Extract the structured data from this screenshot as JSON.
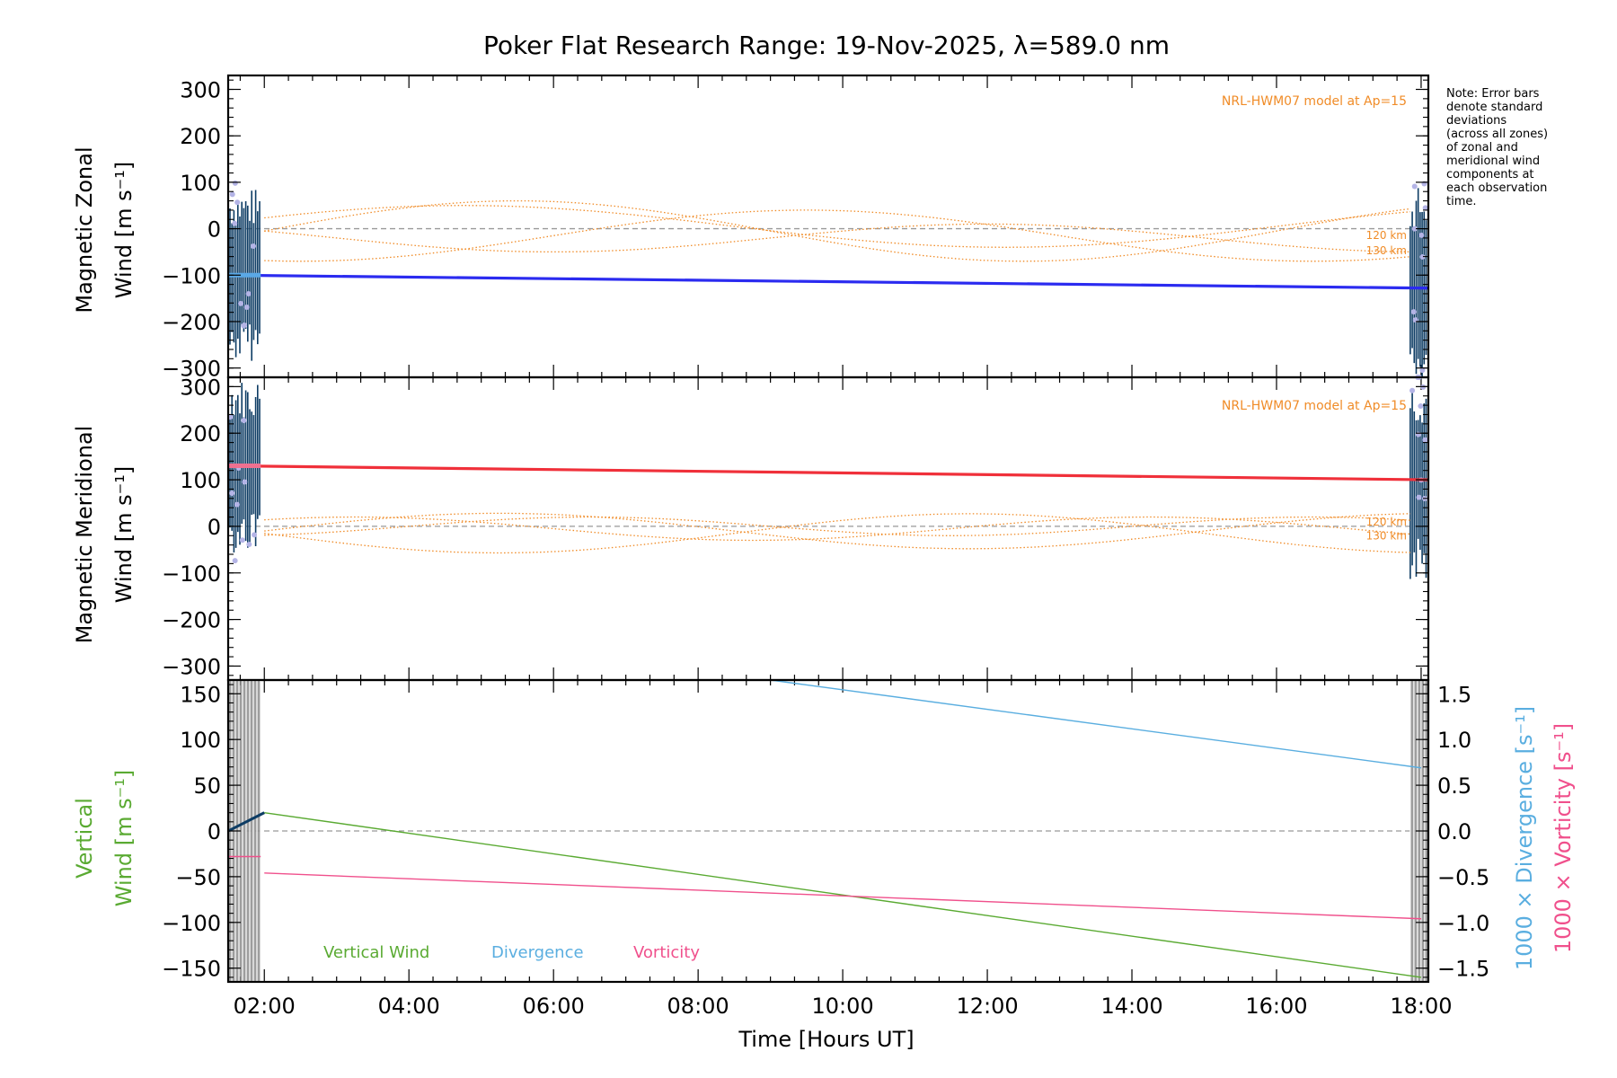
{
  "chart_data": {
    "type": "line",
    "title": "Poker Flat Research Range: 19-Nov-2025, λ=589.0 nm",
    "xlabel": "Time [Hours UT]",
    "x_range_hours": [
      1.5,
      18.1
    ],
    "x_ticks": [
      {
        "hour": 2,
        "label": "02:00"
      },
      {
        "hour": 4,
        "label": "04:00"
      },
      {
        "hour": 6,
        "label": "06:00"
      },
      {
        "hour": 8,
        "label": "08:00"
      },
      {
        "hour": 10,
        "label": "10:00"
      },
      {
        "hour": 12,
        "label": "12:00"
      },
      {
        "hour": 14,
        "label": "14:00"
      },
      {
        "hour": 16,
        "label": "16:00"
      },
      {
        "hour": 18,
        "label": "18:00"
      }
    ],
    "note": [
      "Note: Error bars",
      "denote standard",
      "deviations",
      "(across all zones)",
      "of zonal and",
      "meridional wind",
      "components at",
      "each observation",
      "time."
    ],
    "colors": {
      "zonal": "#2b2bf0",
      "meridional": "#f0303a",
      "vertical": "#5aaa32",
      "divergence": "#5aaee0",
      "vorticity": "#f0508c",
      "model": "#f08c28",
      "errorbar": "#0d3c64",
      "errorlight": "#b4b4e6",
      "gray": "#8c8c8c"
    },
    "panels": [
      {
        "id": "zonal",
        "ylabel_line1": "Magnetic Zonal",
        "ylabel_line2": "Wind [m s⁻¹]",
        "ylim": [
          -320,
          330
        ],
        "yticks": [
          {
            "v": 300,
            "label": "300"
          },
          {
            "v": 200,
            "label": "200"
          },
          {
            "v": 100,
            "label": "100"
          },
          {
            "v": 0,
            "label": "0"
          },
          {
            "v": -100,
            "label": "−100"
          },
          {
            "v": -200,
            "label": "−200"
          },
          {
            "v": -300,
            "label": "−300"
          }
        ],
        "model_label": "NRL-HWM07 model at Ap=15",
        "altitude_labels": [
          {
            "text": "120 km",
            "v": -22
          },
          {
            "text": "130 km",
            "v": -55
          }
        ],
        "series": [
          {
            "name": "Zonal wind",
            "x": [
              1.5,
              18.1
            ],
            "y": [
              -100,
              -128
            ]
          }
        ],
        "model_curves": [
          {
            "name": "HWM curve 1",
            "amp": 65,
            "period": 14,
            "phase": 2.0,
            "offset": -5
          },
          {
            "name": "HWM curve 2",
            "amp": 55,
            "period": 14,
            "phase": 6.0,
            "offset": -15
          },
          {
            "name": "HWM curve 3",
            "amp": 45,
            "period": 15,
            "phase": 1.0,
            "offset": 5
          },
          {
            "name": "HWM curve 4",
            "amp": 30,
            "period": 12,
            "phase": 9.0,
            "offset": -20
          }
        ]
      },
      {
        "id": "meridional",
        "ylabel_line1": "Magnetic Meridional",
        "ylabel_line2": "Wind [m s⁻¹]",
        "ylim": [
          -330,
          320
        ],
        "yticks": [
          {
            "v": 300,
            "label": "300"
          },
          {
            "v": 200,
            "label": "200"
          },
          {
            "v": 100,
            "label": "100"
          },
          {
            "v": 0,
            "label": "0"
          },
          {
            "v": -100,
            "label": "−100"
          },
          {
            "v": -200,
            "label": "−200"
          },
          {
            "v": -300,
            "label": "−300"
          }
        ],
        "model_label": "NRL-HWM07 model at Ap=15",
        "altitude_labels": [
          {
            "text": "120 km",
            "v": 2
          },
          {
            "text": "130 km",
            "v": -28
          }
        ],
        "series": [
          {
            "name": "Meridional wind",
            "x": [
              1.5,
              18.1
            ],
            "y": [
              130,
              100
            ]
          }
        ],
        "model_curves": [
          {
            "name": "HWM curve 1",
            "amp": 38,
            "period": 13,
            "phase": 2.0,
            "offset": -10
          },
          {
            "name": "HWM curve 2",
            "amp": 42,
            "period": 13,
            "phase": 8.5,
            "offset": -15
          },
          {
            "name": "HWM curve 3",
            "amp": 20,
            "period": 10,
            "phase": 4.0,
            "offset": 0
          },
          {
            "name": "HWM curve 4",
            "amp": 25,
            "period": 11,
            "phase": 0.5,
            "offset": -5
          }
        ]
      },
      {
        "id": "vertical",
        "ylabel_line1": "Vertical",
        "ylabel_line2": "Wind [m s⁻¹]",
        "ylim": [
          -165,
          165
        ],
        "yticks": [
          {
            "v": 150,
            "label": "150"
          },
          {
            "v": 100,
            "label": "100"
          },
          {
            "v": 50,
            "label": "50"
          },
          {
            "v": 0,
            "label": "0"
          },
          {
            "v": -50,
            "label": "−50"
          },
          {
            "v": -100,
            "label": "−100"
          },
          {
            "v": -150,
            "label": "−150"
          }
        ],
        "right_axis": {
          "ylim": [
            -1.65,
            1.65
          ],
          "ticks": [
            {
              "v": 1.5,
              "label": "1.5"
            },
            {
              "v": 1.0,
              "label": "1.0"
            },
            {
              "v": 0.5,
              "label": "0.5"
            },
            {
              "v": 0.0,
              "label": "0.0"
            },
            {
              "v": -0.5,
              "label": "−0.5"
            },
            {
              "v": -1.0,
              "label": "−1.0"
            },
            {
              "v": -1.5,
              "label": "−1.5"
            }
          ],
          "label_divergence": "1000 × Divergence [s⁻¹]",
          "label_vorticity": "1000 × Vorticity [s⁻¹]"
        },
        "series": [
          {
            "name": "Vertical Wind",
            "axis": "left",
            "x": [
              2.0,
              18.0
            ],
            "y": [
              20,
              -160
            ]
          },
          {
            "name": "Divergence",
            "axis": "right",
            "x": [
              9.0,
              18.0
            ],
            "y": [
              1.65,
              0.69
            ]
          },
          {
            "name": "Vorticity",
            "axis": "right",
            "x": [
              2.0,
              18.0
            ],
            "y": [
              -0.46,
              -0.96
            ]
          }
        ],
        "legend": [
          "Vertical Wind",
          "Divergence",
          "Vorticity"
        ]
      }
    ]
  }
}
